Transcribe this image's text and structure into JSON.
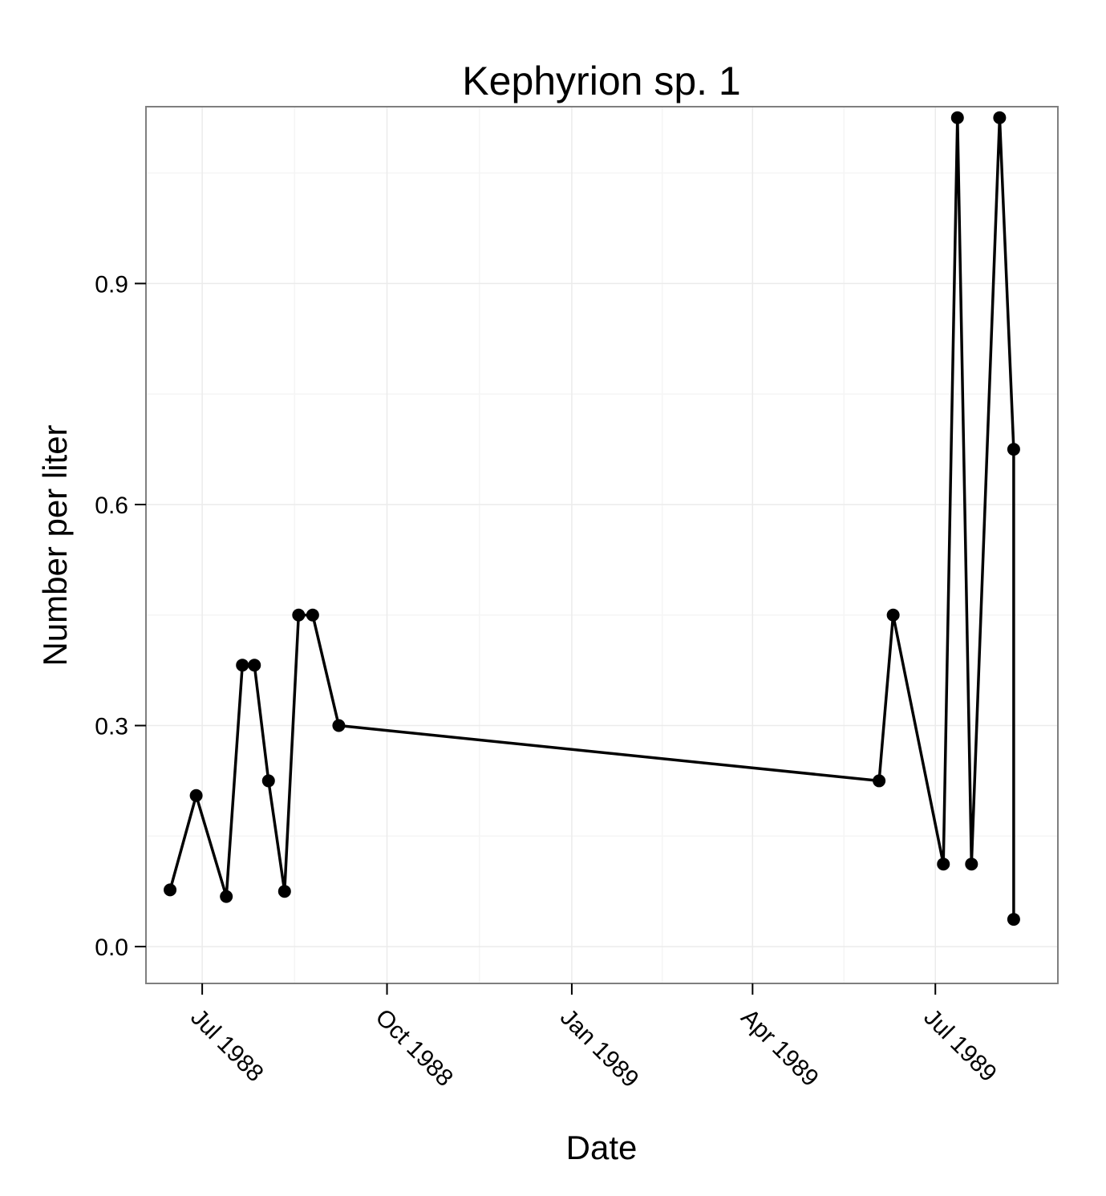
{
  "chart_data": {
    "type": "line",
    "title": "Kephyrion sp. 1",
    "xlabel": "Date",
    "ylabel": "Number per liter",
    "x_axis": {
      "type": "date",
      "range": [
        "1988-06-03",
        "1989-08-31"
      ],
      "ticks": [
        {
          "date": "1988-07-01",
          "label": "Jul 1988"
        },
        {
          "date": "1988-10-01",
          "label": "Oct 1988"
        },
        {
          "date": "1989-01-01",
          "label": "Jan 1989"
        },
        {
          "date": "1989-04-01",
          "label": "Apr 1989"
        },
        {
          "date": "1989-07-01",
          "label": "Jul 1989"
        }
      ]
    },
    "y_axis": {
      "range": [
        -0.05,
        1.14
      ],
      "ticks": [
        {
          "value": 0.0,
          "label": "0.0"
        },
        {
          "value": 0.3,
          "label": "0.3"
        },
        {
          "value": 0.6,
          "label": "0.6"
        },
        {
          "value": 0.9,
          "label": "0.9"
        }
      ],
      "minor_ticks": [
        0.15,
        0.45,
        0.75,
        1.05
      ]
    },
    "grid": true,
    "markers": true,
    "colors": {
      "line": "#000000",
      "panel_border": "#7f7f7f",
      "grid_major": "#ebebeb",
      "grid_minor": "#f5f5f5"
    },
    "series": [
      {
        "points": [
          {
            "x": "1988-06-15",
            "y": 0.077
          },
          {
            "x": "1988-06-28",
            "y": 0.205
          },
          {
            "x": "1988-07-13",
            "y": 0.068
          },
          {
            "x": "1988-07-21",
            "y": 0.382
          },
          {
            "x": "1988-07-27",
            "y": 0.382
          },
          {
            "x": "1988-08-03",
            "y": 0.225
          },
          {
            "x": "1988-08-11",
            "y": 0.075
          },
          {
            "x": "1988-08-18",
            "y": 0.45
          },
          {
            "x": "1988-08-25",
            "y": 0.45
          },
          {
            "x": "1988-09-07",
            "y": 0.3
          },
          {
            "x": "1989-06-03",
            "y": 0.225
          },
          {
            "x": "1989-06-10",
            "y": 0.45
          },
          {
            "x": "1989-07-05",
            "y": 0.112
          },
          {
            "x": "1989-07-12",
            "y": 1.125
          },
          {
            "x": "1989-07-19",
            "y": 0.112
          },
          {
            "x": "1989-08-02",
            "y": 1.125
          },
          {
            "x": "1989-08-09",
            "y": 0.675
          },
          {
            "x": "1989-08-09",
            "y": 0.037
          }
        ]
      }
    ]
  }
}
